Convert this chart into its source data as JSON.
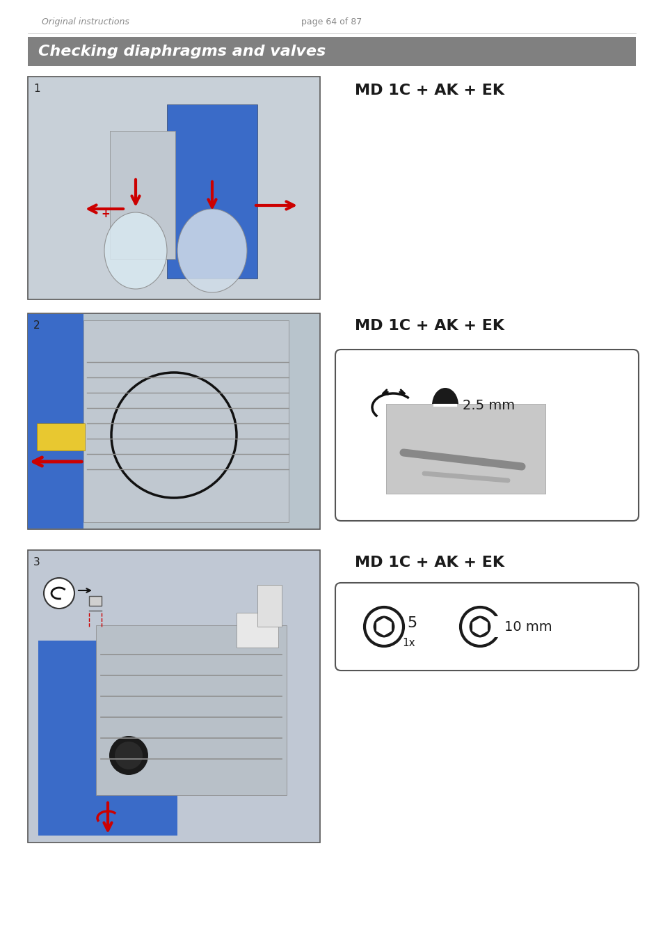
{
  "page_header_left": "Original instructions",
  "page_header_center": "page 64 of 87",
  "section_title": "Checking diaphragms and valves",
  "section_bg": "#808080",
  "section_text_color": "#ffffff",
  "label1": "MD 1C + AK + EK",
  "label2": "MD 1C + AK + EK",
  "label3": "MD 1C + AK + EK",
  "box2_line1": "2.5 mm",
  "box3_line1": "5",
  "box3_line2": "10 mm",
  "box3_sub": "1x",
  "bg_color": "#ffffff",
  "text_color": "#1a1a1a",
  "header_color": "#888888",
  "border_color": "#333333",
  "image_bg": "#d0d0d0",
  "num1": "1",
  "num2": "2",
  "num3": "3"
}
